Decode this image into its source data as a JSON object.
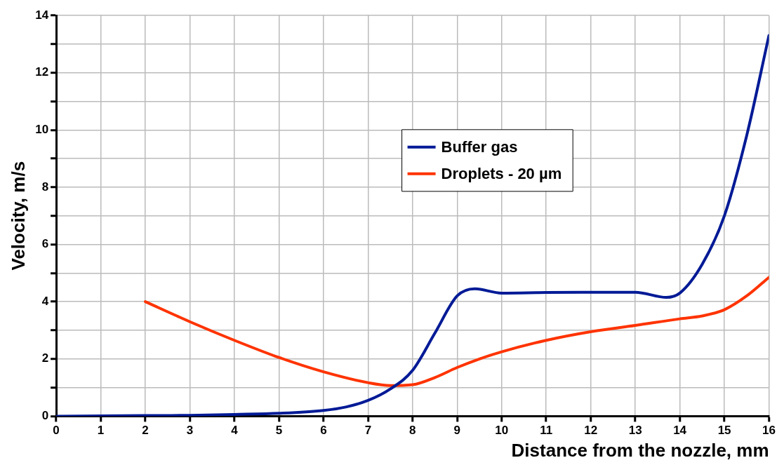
{
  "chart_data": {
    "type": "line",
    "xlabel": "Distance from the nozzle, mm",
    "ylabel": "Velocity, m/s",
    "xlim": [
      0,
      16
    ],
    "xticks": [
      0,
      1,
      2,
      3,
      4,
      5,
      6,
      7,
      8,
      9,
      10,
      11,
      12,
      13,
      14,
      15,
      16
    ],
    "ylim": [
      0,
      14
    ],
    "yticks": [
      0,
      {
        "value": 1,
        "label": null
      },
      2,
      {
        "value": 3,
        "label": null
      },
      4,
      {
        "value": 5,
        "label": null
      },
      6,
      {
        "value": 7,
        "label": null
      },
      8,
      {
        "value": 9,
        "label": null
      },
      10,
      {
        "value": 11,
        "label": null
      },
      12,
      {
        "value": 13,
        "label": null
      },
      14
    ],
    "grid": true,
    "legend": "top",
    "marker": "none",
    "line_style": "solid",
    "series": [
      {
        "name": "Buffer gas",
        "color": "#001a96",
        "x": [
          0,
          1,
          2,
          3,
          4,
          5,
          6,
          6.5,
          7,
          7.5,
          8,
          8.5,
          9,
          9.4,
          10,
          11,
          12,
          13,
          13.7,
          14,
          14.5,
          15,
          15.5,
          16
        ],
        "values": [
          0,
          0.01,
          0.02,
          0.03,
          0.06,
          0.1,
          0.2,
          0.32,
          0.55,
          0.95,
          1.6,
          2.9,
          4.2,
          4.45,
          4.3,
          4.32,
          4.33,
          4.33,
          4.15,
          4.3,
          5.3,
          7.0,
          9.8,
          13.3
        ]
      },
      {
        "name": "Droplets - 20 µm",
        "color": "#ff3300",
        "x": [
          2,
          3,
          4,
          5,
          6,
          7,
          7.5,
          8,
          8.5,
          9,
          9.5,
          10,
          11,
          12,
          13,
          14,
          14.5,
          15,
          15.5,
          16
        ],
        "values": [
          4.0,
          3.3,
          2.65,
          2.05,
          1.55,
          1.17,
          1.07,
          1.1,
          1.35,
          1.7,
          2.0,
          2.25,
          2.65,
          2.95,
          3.17,
          3.4,
          3.5,
          3.72,
          4.2,
          4.85
        ]
      }
    ]
  }
}
